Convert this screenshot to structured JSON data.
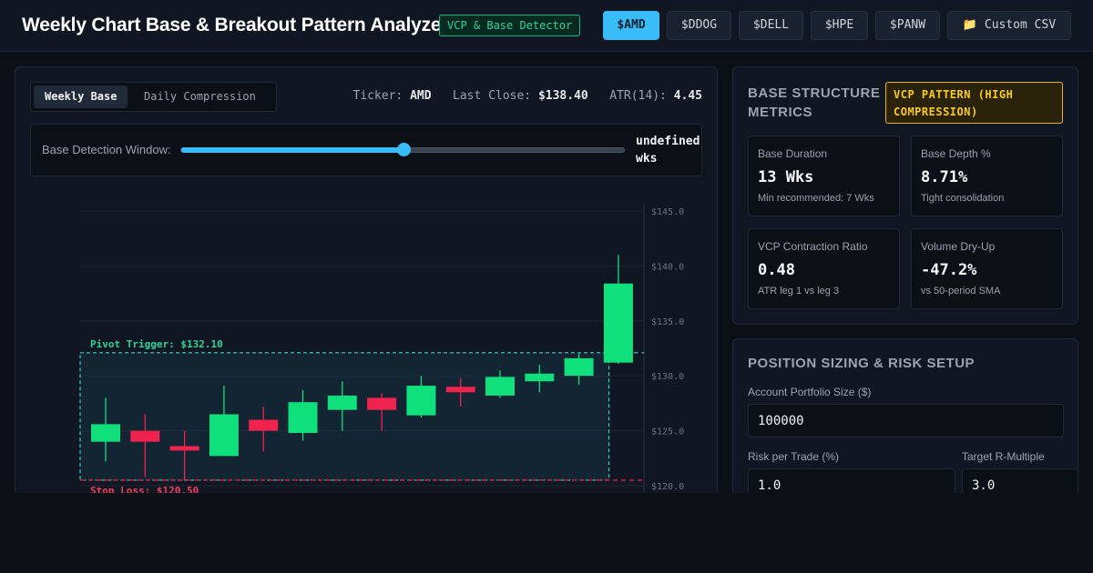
{
  "header": {
    "title": "Weekly Chart Base & Breakout Pattern Analyzer",
    "badge": "VCP & Base Detector",
    "tickers": [
      "$AMD",
      "$DDOG",
      "$DELL",
      "$HPE",
      "$PANW"
    ],
    "active_ticker": "$AMD",
    "custom_csv": "📁 Custom CSV"
  },
  "chart_panel": {
    "tabs": [
      "Weekly Base",
      "Daily Compression"
    ],
    "active_tab": "Weekly Base",
    "ticker_label": "Ticker:",
    "ticker_value": "AMD",
    "close_label": "Last Close:",
    "close_value": "$138.40",
    "atr_label": "ATR(14):",
    "atr_value": "4.45",
    "window_label": "Base Detection Window:",
    "window_value": "undefined wks",
    "window_fraction": 0.5
  },
  "chart_data": {
    "type": "candlestick",
    "ylim": [
      119,
      146
    ],
    "y_ticks": [
      120,
      125,
      130,
      135,
      140,
      145
    ],
    "y_tick_labels": [
      "$120.0",
      "$125.0",
      "$130.0",
      "$135.0",
      "$140.0",
      "$145.0"
    ],
    "candles": [
      {
        "o": 124.0,
        "h": 128.0,
        "l": 122.2,
        "c": 125.6
      },
      {
        "o": 125.0,
        "h": 126.5,
        "l": 120.8,
        "c": 124.0
      },
      {
        "o": 123.6,
        "h": 125.0,
        "l": 120.5,
        "c": 123.2
      },
      {
        "o": 122.7,
        "h": 129.1,
        "l": 122.9,
        "c": 126.5
      },
      {
        "o": 126.0,
        "h": 127.2,
        "l": 123.1,
        "c": 125.0
      },
      {
        "o": 124.8,
        "h": 128.7,
        "l": 124.1,
        "c": 127.6
      },
      {
        "o": 126.9,
        "h": 129.5,
        "l": 125.0,
        "c": 128.2
      },
      {
        "o": 128.0,
        "h": 128.4,
        "l": 125.0,
        "c": 126.9
      },
      {
        "o": 126.4,
        "h": 130.0,
        "l": 126.2,
        "c": 129.1
      },
      {
        "o": 129.0,
        "h": 129.8,
        "l": 127.2,
        "c": 128.5
      },
      {
        "o": 128.2,
        "h": 130.5,
        "l": 128.0,
        "c": 129.9
      },
      {
        "o": 129.5,
        "h": 131.0,
        "l": 128.5,
        "c": 130.2
      },
      {
        "o": 130.0,
        "h": 132.0,
        "l": 129.2,
        "c": 131.6
      },
      {
        "o": 131.2,
        "h": 141.0,
        "l": 131.1,
        "c": 138.4
      }
    ],
    "base_candle_count": 13,
    "pivot_price": 132.1,
    "stop_price": 120.5,
    "pivot_label": "Pivot Trigger: $132.10",
    "stop_label": "Stop Loss: $120.50",
    "up_color": "#0fe07c",
    "down_color": "#f0234f",
    "pivot_color": "#2dd4bf",
    "stop_color": "#e11d48"
  },
  "metrics": {
    "title": "BASE STRUCTURE METRICS",
    "pattern_badge": "VCP PATTERN (HIGH COMPRESSION)",
    "cards": [
      {
        "label": "Base Duration",
        "value": "13 Wks",
        "sub": "Min recommended: 7 Wks"
      },
      {
        "label": "Base Depth %",
        "value": "8.71%",
        "sub": "Tight consolidation"
      },
      {
        "label": "VCP Contraction Ratio",
        "value": "0.48",
        "sub": "ATR leg 1 vs leg 3"
      },
      {
        "label": "Volume Dry-Up",
        "value": "-47.2%",
        "sub": "vs 50-period SMA"
      }
    ]
  },
  "position": {
    "title": "POSITION SIZING & RISK SETUP",
    "portfolio_label": "Account Portfolio Size ($)",
    "portfolio_value": "100000",
    "risk_label": "Risk per Trade (%)",
    "risk_value": "1.0",
    "r_label": "Target R-Multiple",
    "r_value": "3.0"
  }
}
